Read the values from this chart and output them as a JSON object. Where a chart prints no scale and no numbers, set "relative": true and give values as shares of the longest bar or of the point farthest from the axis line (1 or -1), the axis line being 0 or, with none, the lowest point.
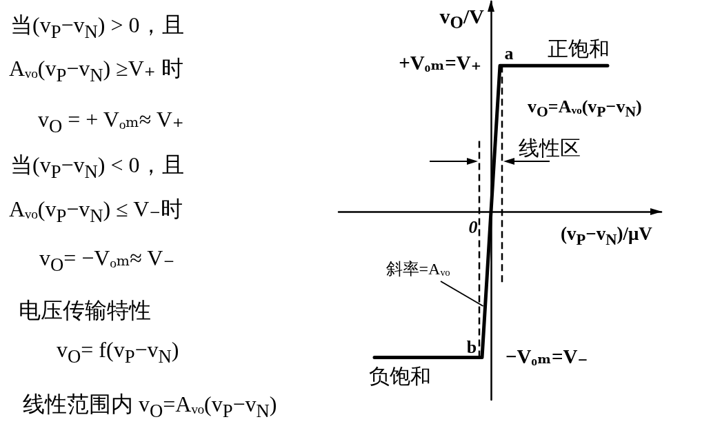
{
  "chart_data": {
    "type": "line",
    "relative": true,
    "xlabel": "(v$_{P}$−v$_{N}$)/μV",
    "ylabel": "v$_{O}$/V",
    "categories": [
      null,
      null,
      null,
      null,
      null,
      null,
      null,
      null,
      null,
      null,
      null,
      null,
      null,
      null,
      null,
      null,
      null,
      null,
      null
    ],
    "values": [
      null,
      null,
      -1,
      -1,
      -1,
      -1,
      -1,
      -1,
      -1,
      1,
      1,
      1,
      1,
      1,
      1,
      1,
      null,
      null,
      null
    ],
    "color": "#000000",
    "marker": "none",
    "line_style": "solid",
    "annotations": [
      "当(v$_{P}$−v$_{N}$) > 0，且",
      "Aᵥₒ(v$_{P}$−v$_{N}$) ≥V₊ 时",
      "v$_{O}$ = + Vₒₘ≈ V₊",
      "当(v$_{P}$−v$_{N}$) < 0，且",
      "Aᵥₒ(v$_{P}$−v$_{N}$) ≤ V₋时",
      "v$_{O}$= −Vₒₘ≈ V₋",
      "电压传输特性",
      "v$_{O}$= f(v$_{P}$−v$_{N}$)",
      "线性范围内  v$_{O}$=Aᵥₒ(v$_{P}$−v$_{N}$)",
      "+Vₒₘ=V₊",
      "−Vₒₘ=V₋",
      {
        "text": "a",
        "y": 1
      },
      {
        "text": "b",
        "y": -1
      },
      {
        "text": "正饱和",
        "y": 1
      },
      {
        "text": "负饱和",
        "y": -1
      },
      "斜率=Aᵥₒ",
      "0",
      "v$_{O}$=Aᵥₒ(v$_{P}$−v$_{N}$)",
      "线性区"
    ]
  }
}
